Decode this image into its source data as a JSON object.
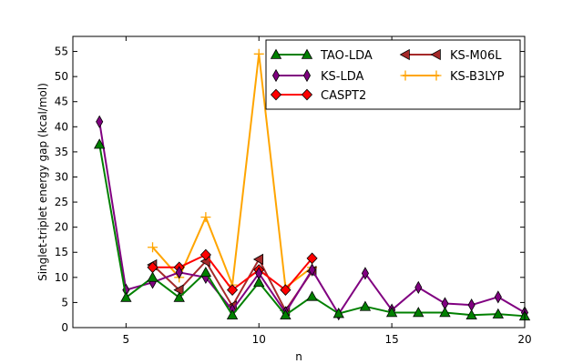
{
  "chart_data": {
    "type": "line",
    "title": "",
    "xlabel": "n",
    "ylabel": "Singlet-triplet energy gap (kcal/mol)",
    "xlim": [
      3,
      20
    ],
    "ylim": [
      0,
      58
    ],
    "xticks": [
      5,
      10,
      15,
      20
    ],
    "yticks": [
      0,
      5,
      10,
      15,
      20,
      25,
      30,
      35,
      40,
      45,
      50,
      55
    ],
    "legend_position": "top-right",
    "series": [
      {
        "name": "TAO-LDA",
        "color": "#008000",
        "marker": "triangle-up",
        "x": [
          4,
          5,
          6,
          7,
          8,
          9,
          10,
          11,
          12,
          13,
          14,
          15,
          16,
          17,
          18,
          19,
          20
        ],
        "y": [
          36.5,
          6.0,
          10.0,
          6.0,
          11.0,
          2.5,
          9.0,
          2.5,
          6.2,
          2.8,
          4.2,
          3.0,
          3.0,
          3.0,
          2.5,
          2.7,
          2.3
        ]
      },
      {
        "name": "KS-LDA",
        "color": "#800080",
        "marker": "thin-diamond",
        "x": [
          4,
          5,
          6,
          7,
          8,
          9,
          10,
          11,
          12,
          13,
          14,
          15,
          16,
          17,
          18,
          19,
          20
        ],
        "y": [
          41.0,
          7.5,
          9.0,
          11.0,
          10.0,
          3.5,
          10.8,
          3.0,
          11.5,
          2.7,
          10.8,
          3.5,
          8.0,
          4.8,
          4.5,
          6.1,
          3.0
        ]
      },
      {
        "name": "CASPT2",
        "color": "#ff0000",
        "marker": "diamond",
        "x": [
          6,
          7,
          8,
          9,
          10,
          11,
          12
        ],
        "y": [
          12.0,
          12.0,
          14.5,
          7.5,
          11.5,
          7.5,
          13.8
        ]
      },
      {
        "name": "KS-M06L",
        "color": "#a52a2a",
        "marker": "triangle-left",
        "x": [
          6,
          7,
          8,
          9,
          10,
          11,
          12
        ],
        "y": [
          12.5,
          7.5,
          13.2,
          4.3,
          13.6,
          3.4,
          11.2
        ]
      },
      {
        "name": "KS-B3LYP",
        "color": "#ffa500",
        "marker": "plus",
        "x": [
          6,
          7,
          8,
          9,
          10,
          11,
          12
        ],
        "y": [
          16.0,
          10.0,
          22.0,
          8.5,
          54.5,
          8.0,
          12.0
        ]
      }
    ]
  }
}
